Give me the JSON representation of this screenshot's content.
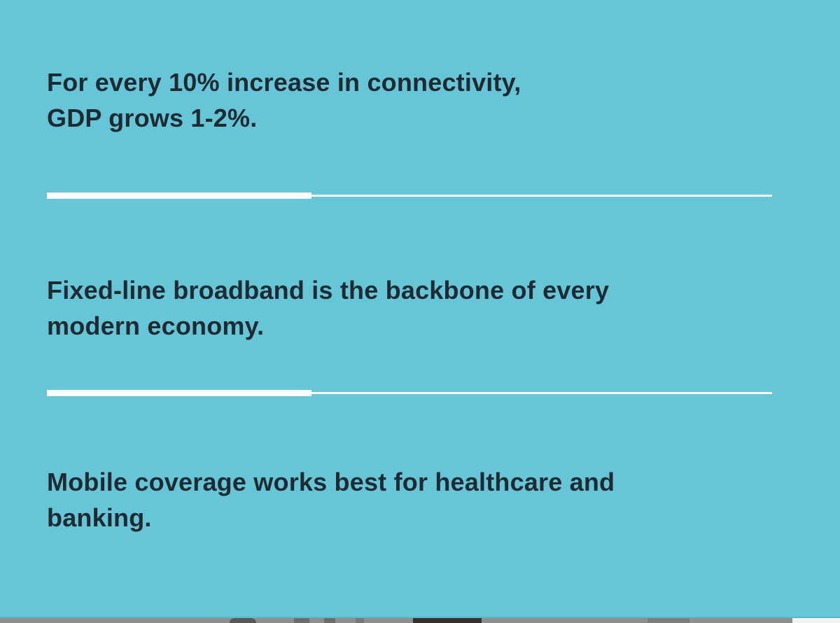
{
  "panel": {
    "background_color": "#67c5d8",
    "text_color": "#1f2b33",
    "divider_color": "#ffffff"
  },
  "statements": [
    {
      "lines": [
        "For every 10% increase in connectivity,",
        "GDP grows 1-2%."
      ]
    },
    {
      "lines": [
        "Fixed-line broadband is the backbone of every",
        "modern economy."
      ]
    },
    {
      "lines": [
        "Mobile coverage works best for healthcare and",
        "banking."
      ]
    }
  ],
  "photo_edge": {
    "base_color": "#8e8e8c",
    "dark_color": "#35302a",
    "highlight_color": "#f4f4f2"
  }
}
